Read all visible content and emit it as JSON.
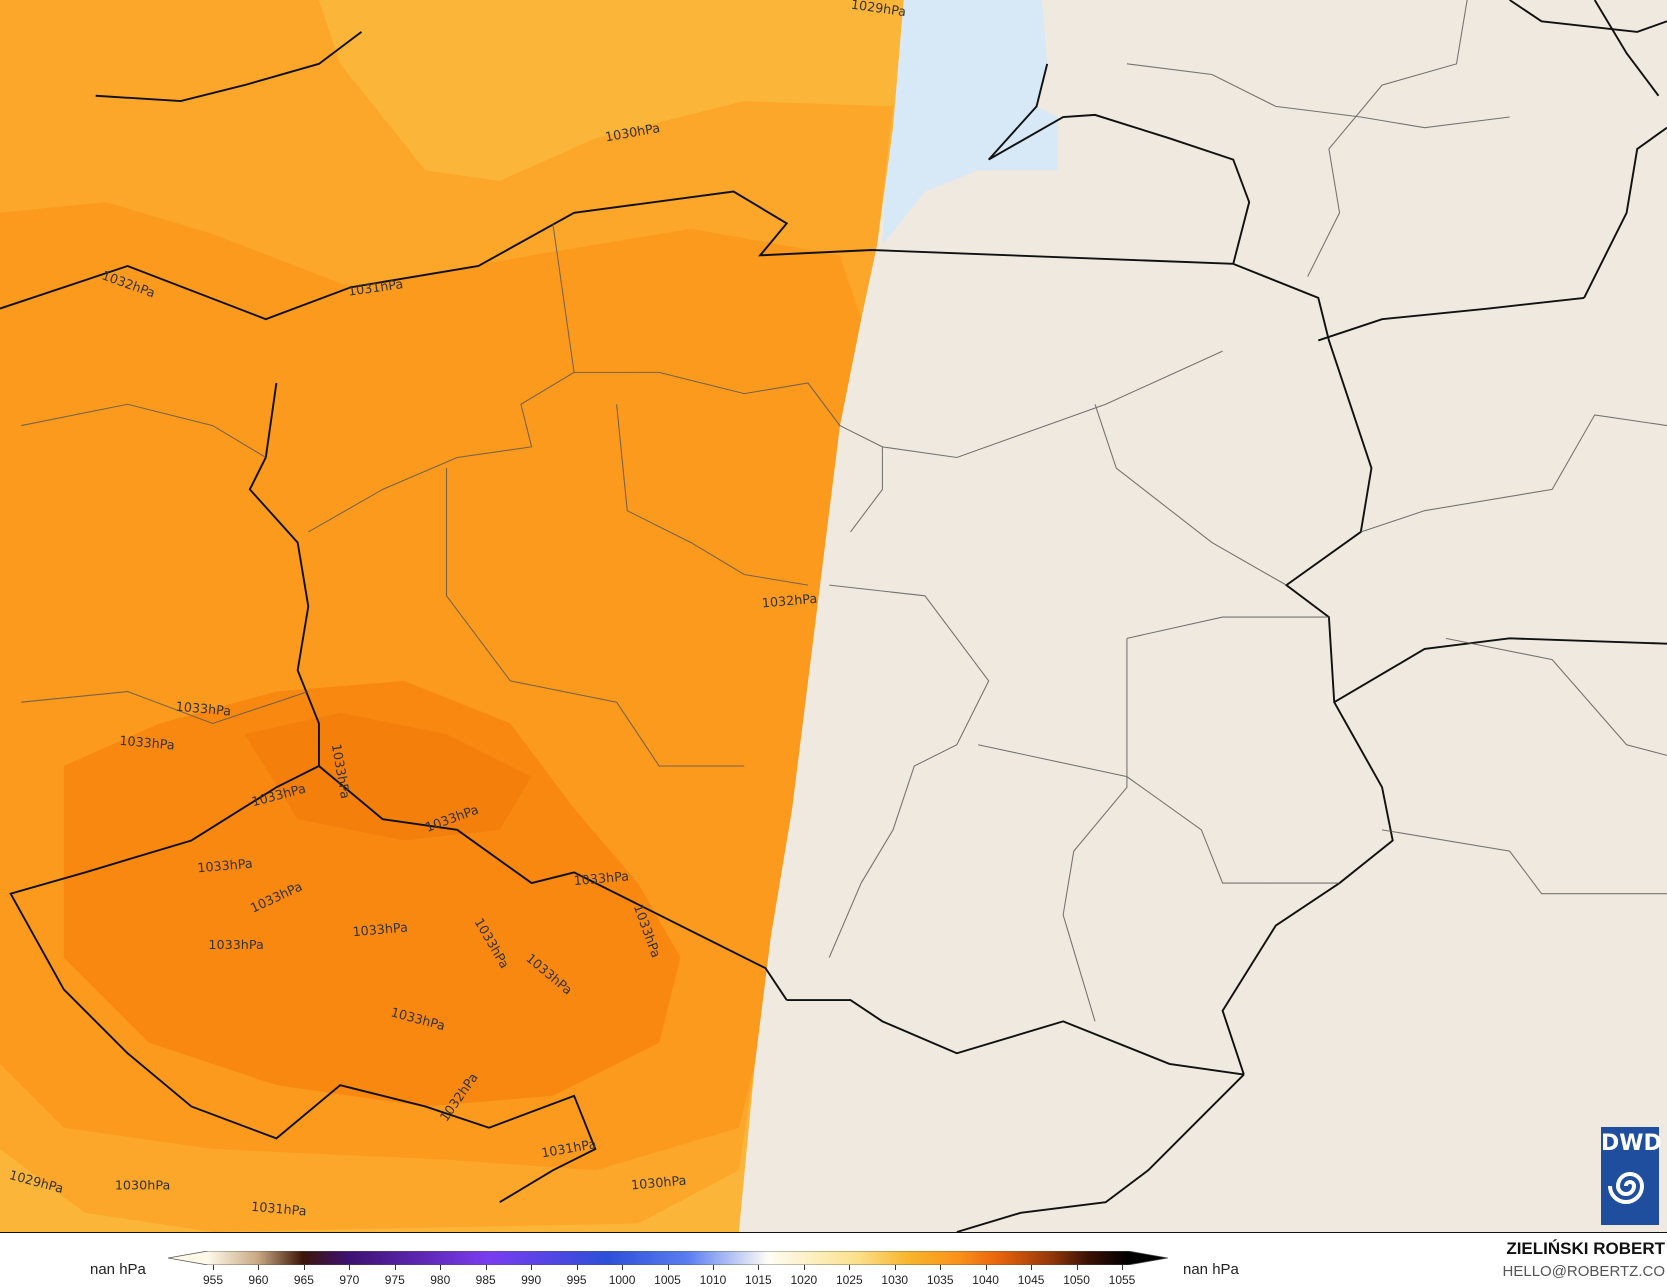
{
  "map": {
    "contour_labels": [
      "1029hPa",
      "1030hPa",
      "1032hPa",
      "1031hPa",
      "1032hPa",
      "1033hPa",
      "1033hPa",
      "1033hPa",
      "1033hPa",
      "1033hPa",
      "1033hPa",
      "1033hPa",
      "1033hPa",
      "1033hPa",
      "1033hPa",
      "1033hPa",
      "1033hPa",
      "1033hPa",
      "1033hPa",
      "1032hPa",
      "1031hPa",
      "1030hPa",
      "1029hPa",
      "1031hPa",
      "1030hPa"
    ],
    "colors": {
      "land": "#efe9df",
      "sea": "#d7e8f7",
      "field_light": "#fbb83a",
      "field_mid": "#fb9a1c",
      "field_dark": "#f8860f",
      "border": "#111111"
    }
  },
  "legend": {
    "left_unit": "nan hPa",
    "right_unit": "nan hPa",
    "ticks": [
      "955",
      "960",
      "965",
      "970",
      "975",
      "980",
      "985",
      "990",
      "995",
      "1000",
      "1005",
      "1010",
      "1015",
      "1020",
      "1025",
      "1030",
      "1035",
      "1040",
      "1045",
      "1050",
      "1055"
    ]
  },
  "credits": {
    "author": "ZIELIŃSKI ROBERT",
    "email": "HELLO@ROBERTZ.CO",
    "logo_text": "DWD"
  }
}
